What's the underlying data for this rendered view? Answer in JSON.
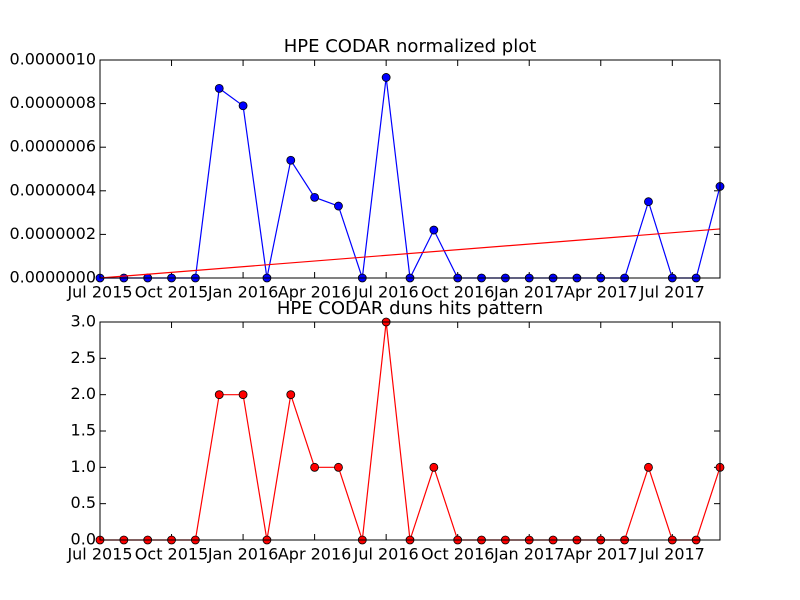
{
  "chart_data": [
    {
      "type": "line",
      "title": "HPE CODAR normalized plot",
      "x": [
        "2015-07",
        "2015-08",
        "2015-09",
        "2015-10",
        "2015-11",
        "2015-12",
        "2016-01",
        "2016-02",
        "2016-03",
        "2016-04",
        "2016-05",
        "2016-06",
        "2016-07",
        "2016-08",
        "2016-09",
        "2016-10",
        "2016-11",
        "2016-12",
        "2017-01",
        "2017-02",
        "2017-03",
        "2017-04",
        "2017-05",
        "2017-06",
        "2017-07",
        "2017-08",
        "2017-09"
      ],
      "series": [
        {
          "color": "#0000ff",
          "values": [
            0,
            0,
            0,
            0,
            0,
            8.7e-07,
            7.9e-07,
            0,
            5.4e-07,
            3.7e-07,
            3.3e-07,
            0,
            9.2e-07,
            0,
            2.2e-07,
            0,
            0,
            0,
            0,
            0,
            0,
            0,
            0,
            3.5e-07,
            0,
            0,
            4.2e-07
          ]
        }
      ],
      "trend": {
        "color": "#ff0000",
        "x": [
          "2015-07",
          "2017-09"
        ],
        "values": [
          0,
          2.25e-07
        ]
      },
      "xlim": [
        "2015-07",
        "2017-09"
      ],
      "xticks": [
        {
          "value": "2015-07",
          "label": "Jul 2015"
        },
        {
          "value": "2015-10",
          "label": "Oct 2015"
        },
        {
          "value": "2016-01",
          "label": "Jan 2016"
        },
        {
          "value": "2016-04",
          "label": "Apr 2016"
        },
        {
          "value": "2016-07",
          "label": "Jul 2016"
        },
        {
          "value": "2016-10",
          "label": "Oct 2016"
        },
        {
          "value": "2017-01",
          "label": "Jan 2017"
        },
        {
          "value": "2017-04",
          "label": "Apr 2017"
        },
        {
          "value": "2017-07",
          "label": "Jul 2017"
        }
      ],
      "ylim": [
        0,
        1e-06
      ],
      "yticks": [
        {
          "value": 0,
          "label": "0.0000000"
        },
        {
          "value": 2e-07,
          "label": "0.0000002"
        },
        {
          "value": 4e-07,
          "label": "0.0000004"
        },
        {
          "value": 6e-07,
          "label": "0.0000006"
        },
        {
          "value": 8e-07,
          "label": "0.0000008"
        },
        {
          "value": 1e-06,
          "label": "0.0000010"
        }
      ]
    },
    {
      "type": "line",
      "title": "HPE CODAR duns hits pattern",
      "x": [
        "2015-07",
        "2015-08",
        "2015-09",
        "2015-10",
        "2015-11",
        "2015-12",
        "2016-01",
        "2016-02",
        "2016-03",
        "2016-04",
        "2016-05",
        "2016-06",
        "2016-07",
        "2016-08",
        "2016-09",
        "2016-10",
        "2016-11",
        "2016-12",
        "2017-01",
        "2017-02",
        "2017-03",
        "2017-04",
        "2017-05",
        "2017-06",
        "2017-07",
        "2017-08",
        "2017-09"
      ],
      "series": [
        {
          "color": "#ff0000",
          "values": [
            0,
            0,
            0,
            0,
            0,
            2,
            2,
            0,
            2,
            1,
            1,
            0,
            3,
            0,
            1,
            0,
            0,
            0,
            0,
            0,
            0,
            0,
            0,
            1,
            0,
            0,
            1
          ]
        }
      ],
      "xlim": [
        "2015-07",
        "2017-09"
      ],
      "xticks": [
        {
          "value": "2015-07",
          "label": "Jul 2015"
        },
        {
          "value": "2015-10",
          "label": "Oct 2015"
        },
        {
          "value": "2016-01",
          "label": "Jan 2016"
        },
        {
          "value": "2016-04",
          "label": "Apr 2016"
        },
        {
          "value": "2016-07",
          "label": "Jul 2016"
        },
        {
          "value": "2016-10",
          "label": "Oct 2016"
        },
        {
          "value": "2017-01",
          "label": "Jan 2017"
        },
        {
          "value": "2017-04",
          "label": "Apr 2017"
        },
        {
          "value": "2017-07",
          "label": "Jul 2017"
        }
      ],
      "ylim": [
        0,
        3
      ],
      "yticks": [
        {
          "value": 0,
          "label": "0.0"
        },
        0.5,
        {
          "value": 1,
          "label": "1.0"
        },
        1.5,
        {
          "value": 2,
          "label": "2.0"
        },
        2.5,
        {
          "value": 3,
          "label": "3.0"
        }
      ]
    }
  ]
}
